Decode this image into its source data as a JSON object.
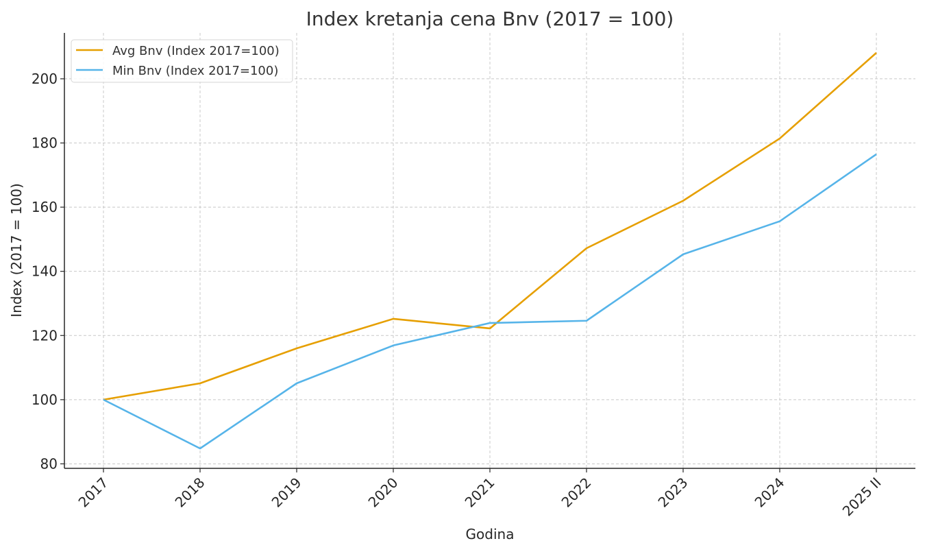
{
  "chart_data": {
    "type": "line",
    "title": "Index kretanja cena Bnv (2017 = 100)",
    "xlabel": "Godina",
    "ylabel": "Index (2017 = 100)",
    "categories": [
      "2017",
      "2018",
      "2019",
      "2020",
      "2021",
      "2022",
      "2023",
      "2024",
      "2025 II"
    ],
    "series": [
      {
        "name": "Avg Bnv (Index 2017=100)",
        "color": "#E69F00",
        "values": [
          100,
          105.1,
          116.0,
          125.2,
          122.2,
          147.2,
          162.0,
          181.4,
          208.1
        ]
      },
      {
        "name": "Min Bnv (Index 2017=100)",
        "color": "#56B4E9",
        "values": [
          100,
          84.8,
          105.1,
          116.9,
          123.9,
          124.6,
          145.3,
          155.6,
          176.5
        ]
      }
    ],
    "yticks": [
      80,
      100,
      120,
      140,
      160,
      180,
      200
    ],
    "ylim": [
      78.6,
      214.3
    ],
    "grid": true,
    "legend_position": "top-left"
  }
}
